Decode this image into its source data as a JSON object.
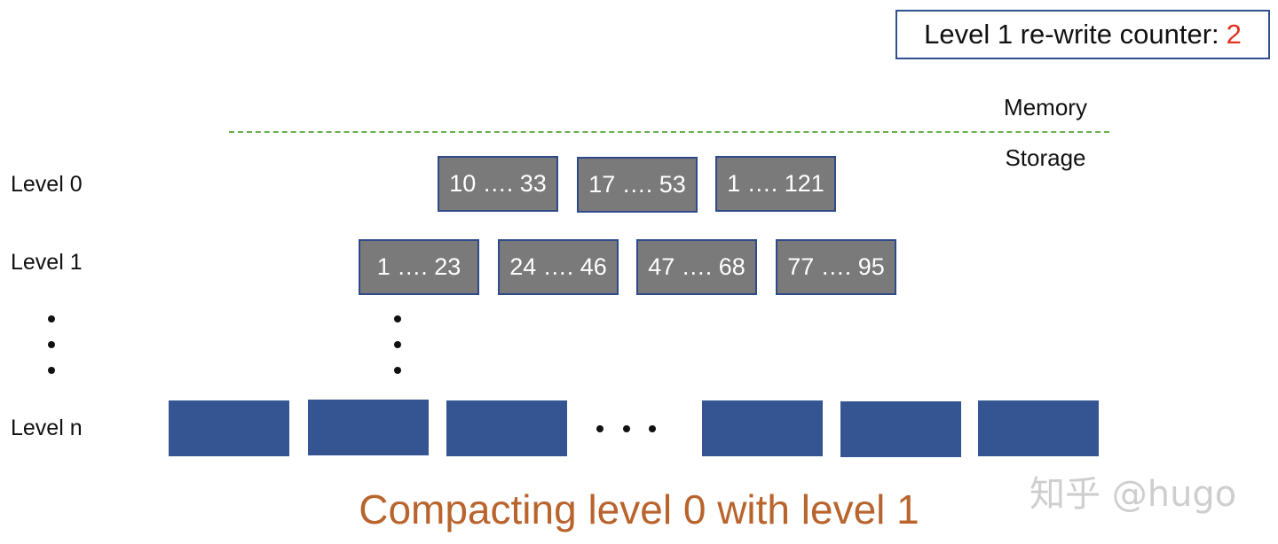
{
  "counter": {
    "label": "Level 1 re-write counter:",
    "value": "2"
  },
  "regions": {
    "memory": "Memory",
    "storage": "Storage"
  },
  "levels": {
    "level0": {
      "label": "Level 0",
      "tables": [
        "10 …. 33",
        "17 …. 53",
        "1 …. 121"
      ]
    },
    "level1": {
      "label": "Level 1",
      "tables": [
        "1 …. 23",
        "24 …. 46",
        "47 …. 68",
        "77 …. 95"
      ]
    },
    "leveln": {
      "label": "Level n"
    }
  },
  "caption": "Compacting level 0 with level 1",
  "watermark": "知乎 @hugo",
  "colors": {
    "sstable_fill": "#7a7a7a",
    "sstable_border": "#2f4a8a",
    "level_n_block": "#345591",
    "divider": "#6ab04c",
    "counter_value": "#e0321f",
    "caption": "#b8642c"
  }
}
